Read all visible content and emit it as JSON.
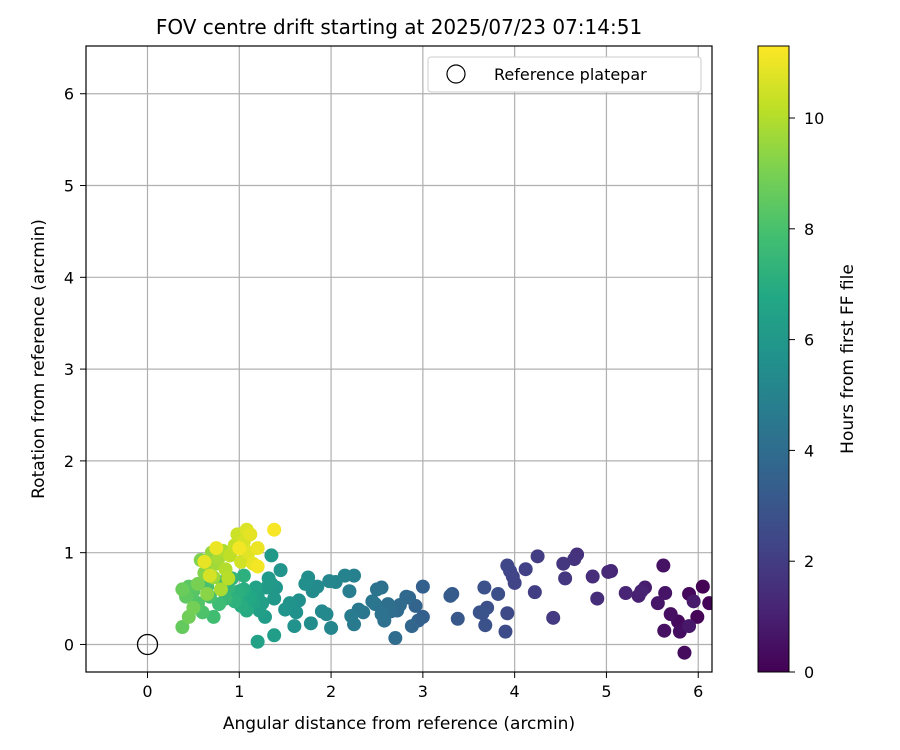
{
  "chart_data": {
    "type": "scatter",
    "title": "FOV centre drift starting at 2025/07/23 07:14:51",
    "xlabel": "Angular distance from reference (arcmin)",
    "ylabel": "Rotation from reference (arcmin)",
    "xlim": [
      -0.67,
      6.15
    ],
    "ylim": [
      -0.3,
      6.52
    ],
    "xticks": [
      0,
      1,
      2,
      3,
      4,
      5,
      6
    ],
    "yticks": [
      0,
      1,
      2,
      3,
      4,
      5,
      6
    ],
    "grid": true,
    "legend": {
      "placement": "top-right",
      "entries": [
        "Reference platepar"
      ]
    },
    "reference_point": {
      "x": 0,
      "y": 0
    },
    "colorbar": {
      "label": "Hours from first FF file",
      "range": [
        0,
        11.3
      ],
      "ticks": [
        0,
        2,
        4,
        6,
        8,
        10
      ],
      "colormap": "viridis"
    },
    "points": [
      [
        6.05,
        0.63,
        0.05
      ],
      [
        6.12,
        0.45,
        0.1
      ],
      [
        5.99,
        0.3,
        0.15
      ],
      [
        5.9,
        0.55,
        0.25
      ],
      [
        5.78,
        0.25,
        0.3
      ],
      [
        5.85,
        -0.09,
        0.35
      ],
      [
        5.8,
        0.14,
        0.4
      ],
      [
        5.7,
        0.33,
        0.45
      ],
      [
        5.63,
        0.15,
        0.5
      ],
      [
        5.62,
        0.86,
        0.55
      ],
      [
        5.64,
        0.56,
        0.6
      ],
      [
        5.56,
        0.45,
        0.7
      ],
      [
        5.9,
        0.2,
        0.75
      ],
      [
        5.95,
        0.47,
        0.8
      ],
      [
        5.42,
        0.62,
        0.9
      ],
      [
        5.35,
        0.53,
        1.0
      ],
      [
        5.38,
        0.58,
        1.05
      ],
      [
        5.21,
        0.56,
        1.15
      ],
      [
        5.05,
        0.8,
        1.25
      ],
      [
        5.02,
        0.79,
        1.3
      ],
      [
        4.9,
        0.5,
        1.45
      ],
      [
        4.85,
        0.74,
        1.5
      ],
      [
        4.68,
        0.98,
        1.6
      ],
      [
        4.65,
        0.93,
        1.65
      ],
      [
        4.55,
        0.72,
        1.75
      ],
      [
        4.53,
        0.88,
        1.8
      ],
      [
        4.42,
        0.29,
        1.9
      ],
      [
        4.25,
        0.96,
        2.0
      ],
      [
        4.22,
        0.57,
        2.05
      ],
      [
        4.12,
        0.82,
        2.15
      ],
      [
        4.0,
        0.67,
        2.25
      ],
      [
        3.98,
        0.74,
        2.3
      ],
      [
        3.95,
        0.8,
        2.35
      ],
      [
        3.92,
        0.86,
        2.4
      ],
      [
        3.92,
        0.34,
        2.5
      ],
      [
        3.9,
        0.14,
        2.6
      ],
      [
        3.82,
        0.55,
        2.7
      ],
      [
        3.7,
        0.4,
        2.75
      ],
      [
        3.68,
        0.21,
        2.8
      ],
      [
        3.67,
        0.62,
        2.85
      ],
      [
        3.65,
        0.34,
        2.9
      ],
      [
        3.62,
        0.35,
        2.95
      ],
      [
        3.38,
        0.28,
        3.1
      ],
      [
        3.32,
        0.55,
        3.2
      ],
      [
        3.3,
        0.53,
        3.25
      ],
      [
        3.0,
        0.3,
        3.4
      ],
      [
        3.0,
        0.63,
        3.45
      ],
      [
        2.95,
        0.26,
        3.55
      ],
      [
        2.92,
        0.42,
        3.6
      ],
      [
        2.88,
        0.2,
        3.7
      ],
      [
        2.85,
        0.51,
        3.75
      ],
      [
        2.82,
        0.52,
        3.8
      ],
      [
        2.75,
        0.43,
        3.9
      ],
      [
        2.72,
        0.37,
        3.95
      ],
      [
        2.7,
        0.07,
        4.0
      ],
      [
        2.65,
        0.36,
        4.05
      ],
      [
        2.62,
        0.44,
        4.1
      ],
      [
        2.58,
        0.26,
        4.15
      ],
      [
        2.55,
        0.62,
        4.2
      ],
      [
        2.55,
        0.33,
        4.25
      ],
      [
        2.5,
        0.6,
        4.3
      ],
      [
        2.48,
        0.44,
        4.35
      ],
      [
        2.45,
        0.47,
        4.4
      ],
      [
        2.35,
        0.35,
        4.45
      ],
      [
        2.3,
        0.38,
        4.5
      ],
      [
        2.25,
        0.22,
        4.6
      ],
      [
        2.22,
        0.31,
        4.7
      ],
      [
        2.2,
        0.58,
        4.8
      ],
      [
        2.25,
        0.75,
        4.9
      ],
      [
        2.15,
        0.75,
        5.0
      ],
      [
        2.05,
        0.68,
        5.1
      ],
      [
        2.0,
        0.18,
        5.15
      ],
      [
        1.98,
        0.69,
        5.2
      ],
      [
        1.95,
        0.33,
        5.25
      ],
      [
        1.9,
        0.36,
        5.3
      ],
      [
        1.85,
        0.63,
        5.35
      ],
      [
        1.8,
        0.58,
        5.4
      ],
      [
        1.78,
        0.23,
        5.45
      ],
      [
        1.75,
        0.73,
        5.5
      ],
      [
        1.72,
        0.66,
        5.55
      ],
      [
        1.65,
        0.48,
        5.6
      ],
      [
        1.62,
        0.35,
        5.65
      ],
      [
        1.6,
        0.2,
        5.7
      ],
      [
        1.55,
        0.45,
        5.75
      ],
      [
        1.5,
        0.38,
        5.8
      ],
      [
        1.45,
        0.81,
        5.85
      ],
      [
        1.4,
        0.62,
        5.9
      ],
      [
        1.38,
        0.5,
        5.95
      ],
      [
        1.35,
        0.66,
        6.0
      ],
      [
        1.35,
        0.97,
        6.05
      ],
      [
        1.32,
        0.72,
        6.1
      ],
      [
        1.3,
        0.62,
        6.15
      ],
      [
        1.28,
        0.3,
        6.2
      ],
      [
        1.38,
        0.1,
        6.25
      ],
      [
        1.25,
        0.45,
        6.3
      ],
      [
        1.22,
        0.37,
        6.35
      ],
      [
        1.2,
        0.53,
        6.4
      ],
      [
        1.2,
        0.03,
        6.45
      ],
      [
        1.18,
        0.62,
        6.5
      ],
      [
        1.15,
        0.45,
        6.6
      ],
      [
        1.12,
        0.52,
        6.7
      ],
      [
        1.1,
        0.5,
        6.8
      ],
      [
        1.08,
        0.37,
        6.9
      ],
      [
        1.05,
        0.6,
        6.95
      ],
      [
        1.02,
        0.42,
        7.0
      ],
      [
        1.0,
        0.58,
        7.05
      ],
      [
        0.98,
        0.55,
        7.1
      ],
      [
        1.05,
        0.75,
        7.15
      ],
      [
        0.95,
        0.47,
        7.2
      ],
      [
        0.92,
        0.72,
        7.3
      ],
      [
        0.88,
        0.62,
        7.4
      ],
      [
        0.85,
        0.5,
        7.5
      ],
      [
        0.82,
        0.68,
        7.6
      ],
      [
        0.78,
        0.44,
        7.7
      ],
      [
        0.72,
        0.3,
        7.8
      ],
      [
        0.68,
        0.52,
        7.9
      ],
      [
        0.65,
        0.63,
        8.0
      ],
      [
        0.6,
        0.35,
        8.1
      ],
      [
        0.55,
        0.45,
        8.2
      ],
      [
        0.5,
        0.58,
        8.3
      ],
      [
        0.45,
        0.63,
        8.4
      ],
      [
        0.42,
        0.52,
        8.5
      ],
      [
        0.38,
        0.19,
        8.6
      ],
      [
        0.38,
        0.6,
        8.7
      ],
      [
        0.45,
        0.3,
        8.8
      ],
      [
        0.5,
        0.4,
        8.9
      ],
      [
        0.55,
        0.66,
        9.0
      ],
      [
        0.58,
        0.92,
        9.1
      ],
      [
        0.62,
        0.78,
        9.2
      ],
      [
        0.65,
        0.55,
        9.3
      ],
      [
        0.68,
        0.85,
        9.4
      ],
      [
        0.7,
        1.0,
        9.5
      ],
      [
        0.72,
        0.73,
        9.6
      ],
      [
        0.75,
        0.88,
        9.7
      ],
      [
        0.78,
        0.95,
        9.8
      ],
      [
        0.8,
        0.6,
        9.85
      ],
      [
        0.82,
        1.02,
        9.9
      ],
      [
        0.85,
        0.82,
        10.0
      ],
      [
        0.88,
        0.72,
        10.1
      ],
      [
        0.9,
        0.97,
        10.2
      ],
      [
        0.95,
        1.08,
        10.3
      ],
      [
        0.98,
        1.2,
        10.4
      ],
      [
        1.02,
        0.9,
        10.5
      ],
      [
        1.05,
        1.12,
        10.6
      ],
      [
        1.08,
        1.25,
        10.7
      ],
      [
        1.1,
        1.0,
        10.8
      ],
      [
        1.12,
        1.2,
        10.85
      ],
      [
        1.15,
        0.88,
        10.9
      ],
      [
        1.2,
        1.05,
        11.0
      ],
      [
        1.2,
        0.85,
        11.1
      ],
      [
        1.38,
        1.25,
        11.2
      ],
      [
        0.62,
        0.9,
        10.9
      ],
      [
        0.75,
        1.05,
        11.0
      ],
      [
        0.68,
        0.75,
        10.6
      ],
      [
        1.0,
        1.05,
        11.1
      ]
    ]
  }
}
